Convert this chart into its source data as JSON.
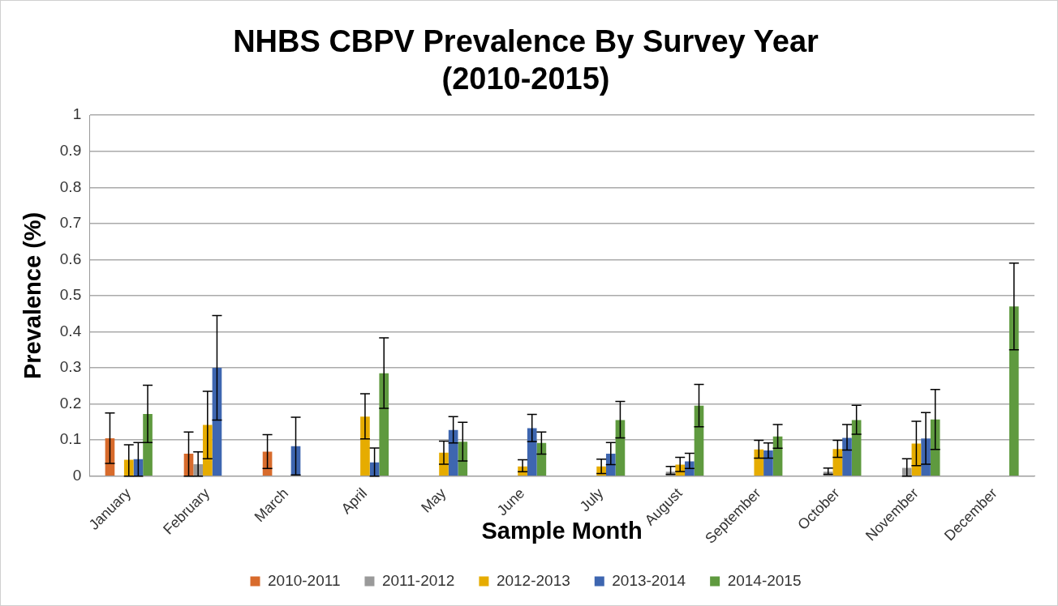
{
  "chart_data": {
    "type": "bar",
    "title": "NHBS CBPV Prevalence By Survey Year\n(2010-2015)",
    "xlabel": "Sample Month",
    "ylabel": "Prevalence (%)",
    "categories": [
      "January",
      "February",
      "March",
      "April",
      "May",
      "June",
      "July",
      "August",
      "September",
      "October",
      "November",
      "December"
    ],
    "ylim": [
      0,
      1
    ],
    "yticks": [
      0,
      0.1,
      0.2,
      0.3,
      0.4,
      0.5,
      0.6,
      0.7,
      0.8,
      0.9,
      1
    ],
    "grid": "y",
    "legend": "bottom",
    "series": [
      {
        "name": "2010-2011",
        "color": "#d86b2c",
        "values": [
          0.105,
          0.062,
          0.068,
          0,
          0,
          0,
          0,
          0,
          0,
          0,
          0,
          0
        ],
        "errors": [
          [
            0.035,
            0.175
          ],
          [
            0,
            0.122
          ],
          [
            0.021,
            0.115
          ],
          null,
          null,
          null,
          null,
          null,
          null,
          null,
          null,
          null
        ]
      },
      {
        "name": "2011-2012",
        "color": "#9a9a9a",
        "values": [
          0,
          0.033,
          0,
          0,
          0,
          0,
          0,
          0.012,
          0,
          0.012,
          0.023,
          0
        ],
        "errors": [
          null,
          [
            0,
            0.067
          ],
          null,
          null,
          null,
          null,
          null,
          [
            0.005,
            0.027
          ],
          null,
          [
            0.005,
            0.022
          ],
          [
            0,
            0.048
          ],
          null
        ]
      },
      {
        "name": "2012-2013",
        "color": "#e6ac00",
        "values": [
          0.045,
          0.142,
          0,
          0.165,
          0.065,
          0.027,
          0.027,
          0.032,
          0.074,
          0.075,
          0.09,
          0
        ],
        "errors": [
          [
            0,
            0.087
          ],
          [
            0.048,
            0.235
          ],
          null,
          [
            0.103,
            0.228
          ],
          [
            0.033,
            0.097
          ],
          [
            0.012,
            0.045
          ],
          [
            0.007,
            0.047
          ],
          [
            0.013,
            0.052
          ],
          [
            0.05,
            0.099
          ],
          [
            0.052,
            0.099
          ],
          [
            0.029,
            0.152
          ],
          null
        ]
      },
      {
        "name": "2013-2014",
        "color": "#3e66b0",
        "values": [
          0.047,
          0.3,
          0.083,
          0.038,
          0.128,
          0.133,
          0.062,
          0.041,
          0.071,
          0.106,
          0.104,
          0
        ],
        "errors": [
          [
            0,
            0.093
          ],
          [
            0.155,
            0.445
          ],
          [
            0.003,
            0.163
          ],
          [
            0,
            0.078
          ],
          [
            0.092,
            0.165
          ],
          [
            0.096,
            0.171
          ],
          [
            0.032,
            0.093
          ],
          [
            0.021,
            0.063
          ],
          [
            0.05,
            0.092
          ],
          [
            0.072,
            0.143
          ],
          [
            0.033,
            0.176
          ],
          null
        ]
      },
      {
        "name": "2014-2015",
        "color": "#5f9a3f",
        "values": [
          0.172,
          0,
          0,
          0.285,
          0.095,
          0.092,
          0.155,
          0.195,
          0.11,
          0.155,
          0.157,
          0.47
        ],
        "errors": [
          [
            0.093,
            0.252
          ],
          null,
          null,
          [
            0.188,
            0.383
          ],
          [
            0.042,
            0.149
          ],
          [
            0.061,
            0.122
          ],
          [
            0.106,
            0.207
          ],
          [
            0.137,
            0.254
          ],
          [
            0.077,
            0.143
          ],
          [
            0.116,
            0.196
          ],
          [
            0.074,
            0.24
          ],
          [
            0.35,
            0.59
          ]
        ]
      }
    ]
  }
}
